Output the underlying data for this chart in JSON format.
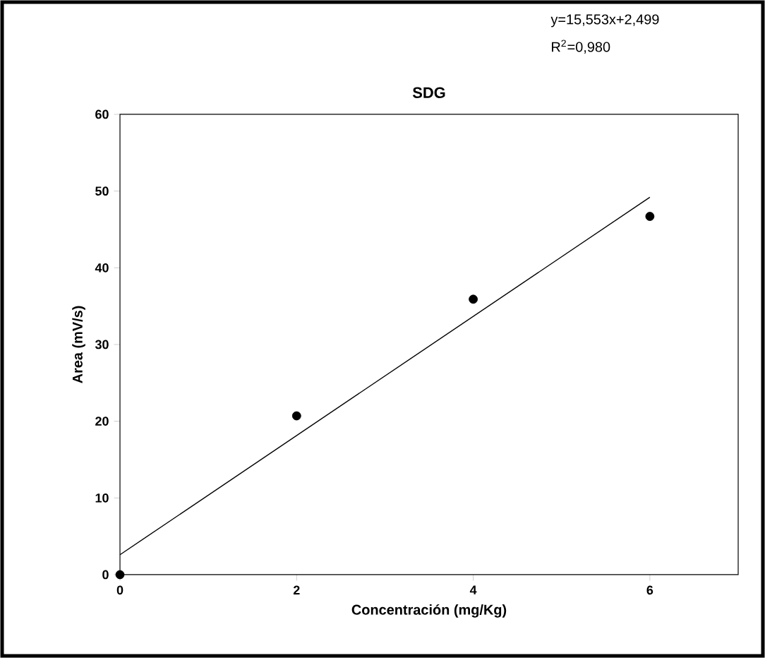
{
  "chart_data": {
    "type": "scatter",
    "title": "SDG",
    "xlabel": "Concentración (mg/Kg)",
    "ylabel": "Area (mV/s)",
    "annotations": [
      "y=15,553x+2,499",
      "R$^{2}$=0,980"
    ],
    "series": [
      {
        "color": "#000000",
        "marker": "circle",
        "x": [
          0,
          2,
          4,
          6
        ],
        "values": [
          0,
          20.7,
          35.9,
          46.7
        ]
      },
      {
        "type": "line",
        "color": "#000000",
        "marker": "none",
        "line_style": "solid",
        "x": [
          0,
          6
        ],
        "values": [
          2.6,
          49.2
        ]
      }
    ],
    "xlim": [
      0,
      7
    ],
    "ylim": [
      0,
      60
    ],
    "xticks": [
      0,
      2,
      4,
      6
    ],
    "yticks": [
      0,
      10,
      20,
      30,
      40,
      50,
      60
    ],
    "grid": false
  }
}
